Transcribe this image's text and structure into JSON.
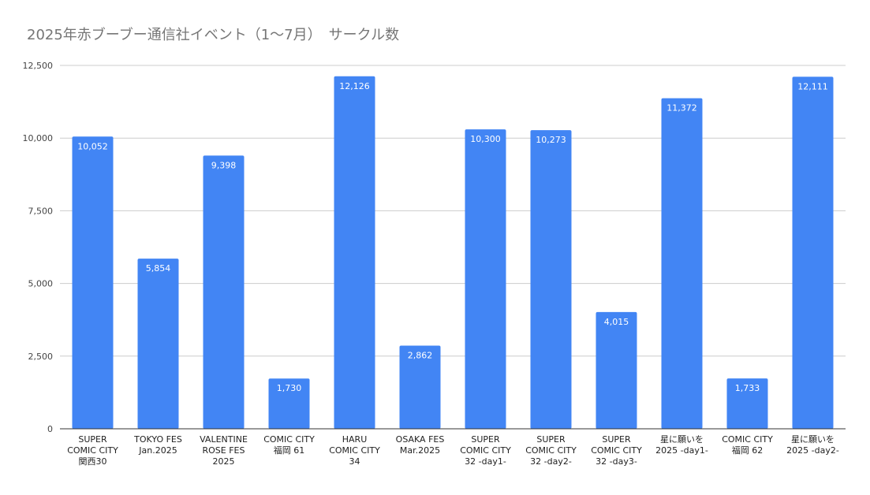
{
  "chart_data": {
    "type": "bar",
    "title": "2025年赤ブーブー通信社イベント（1〜7月）　サークル数",
    "xlabel": "",
    "ylabel": "",
    "ylim": [
      0,
      12500
    ],
    "yticks": [
      0,
      2500,
      5000,
      7500,
      10000,
      12500
    ],
    "ytick_labels": [
      "0",
      "2,500",
      "5,000",
      "7,500",
      "10,000",
      "12,500"
    ],
    "grid": true,
    "legend": "none",
    "bar_color": "#4285f4",
    "categories": [
      [
        "SUPER",
        "COMIC CITY",
        "関西30"
      ],
      [
        "TOKYO FES",
        "Jan.2025"
      ],
      [
        "VALENTINE",
        "ROSE FES",
        "2025"
      ],
      [
        "COMIC CITY",
        "福岡 61"
      ],
      [
        "HARU",
        "COMIC CITY",
        "34"
      ],
      [
        "OSAKA FES",
        "Mar.2025"
      ],
      [
        "SUPER",
        "COMIC CITY",
        "32 -day1-"
      ],
      [
        "SUPER",
        "COMIC CITY",
        "32 -day2-"
      ],
      [
        "SUPER",
        "COMIC CITY",
        "32 -day3-"
      ],
      [
        "星に願いを",
        "2025 -day1-"
      ],
      [
        "COMIC CITY",
        "福岡 62"
      ],
      [
        "星に願いを",
        "2025 -day2-"
      ]
    ],
    "values": [
      10052,
      5854,
      9398,
      1730,
      12126,
      2862,
      10300,
      10273,
      4015,
      11372,
      1733,
      12111
    ],
    "data_labels": [
      "10,052",
      "5,854",
      "9,398",
      "1,730",
      "12,126",
      "2,862",
      "10,300",
      "10,273",
      "4,015",
      "11,372",
      "1,733",
      "12,111"
    ]
  }
}
